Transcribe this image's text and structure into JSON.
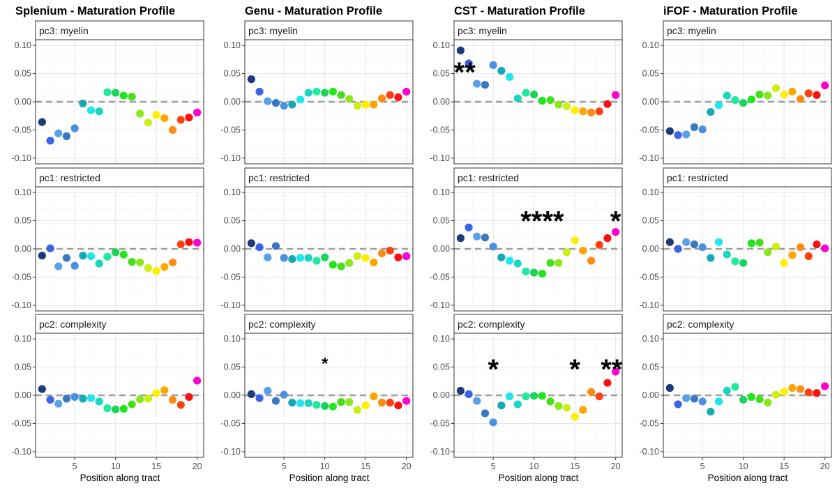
{
  "figure": {
    "columns": [
      {
        "title": "Splenium - Maturation Profile"
      },
      {
        "title": "Genu - Maturation Profile"
      },
      {
        "title": "CST - Maturation Profile"
      },
      {
        "title": "iFOF - Maturation Profile"
      }
    ],
    "rows": [
      {
        "strip": "pc3: myelin"
      },
      {
        "strip": "pc1: restricted"
      },
      {
        "strip": "pc2: complexity"
      }
    ],
    "x_axis_label": "Position along tract"
  },
  "chart_data": {
    "type": "scatter",
    "x": [
      1,
      2,
      3,
      4,
      5,
      6,
      7,
      8,
      9,
      10,
      11,
      12,
      13,
      14,
      15,
      16,
      17,
      18,
      19,
      20
    ],
    "xlim": [
      0.2,
      20.8
    ],
    "x_ticks": [
      5,
      10,
      15,
      20
    ],
    "ylim": [
      -0.11,
      0.11
    ],
    "y_ticks": [
      -0.1,
      -0.05,
      0.0,
      0.05,
      0.1
    ],
    "y_tick_labels": [
      "-0.10",
      "-0.05",
      "0.00",
      "0.05",
      "0.10"
    ],
    "reference_line": 0,
    "grid": true,
    "point_colors": [
      "#1f3a78",
      "#3a63e8",
      "#5aa0e8",
      "#3b78c4",
      "#4a90e2",
      "#17a8b5",
      "#1ee6ee",
      "#18d6c0",
      "#22e8a0",
      "#1bd45c",
      "#22e61c",
      "#44e01a",
      "#88e818",
      "#ccee12",
      "#ffee00",
      "#ffa500",
      "#ff8c10",
      "#ff4010",
      "#ff1010",
      "#ff00d0"
    ],
    "panels": [
      {
        "column": 0,
        "row": 0,
        "values": [
          -0.036,
          -0.069,
          -0.056,
          -0.061,
          -0.047,
          -0.003,
          -0.015,
          -0.017,
          0.017,
          0.016,
          0.011,
          0.009,
          -0.021,
          -0.037,
          -0.023,
          -0.029,
          -0.05,
          -0.032,
          -0.028,
          -0.019
        ],
        "significance": []
      },
      {
        "column": 1,
        "row": 0,
        "values": [
          0.04,
          0.018,
          0.001,
          -0.002,
          -0.007,
          -0.005,
          0.004,
          0.016,
          0.018,
          0.016,
          0.018,
          0.012,
          0.005,
          -0.007,
          -0.005,
          -0.005,
          0.006,
          0.012,
          0.008,
          0.018
        ],
        "significance": []
      },
      {
        "column": 2,
        "row": 0,
        "values": [
          0.091,
          0.068,
          0.032,
          0.03,
          0.065,
          0.055,
          0.044,
          0.006,
          0.016,
          0.013,
          0.002,
          0.003,
          -0.005,
          -0.008,
          -0.015,
          -0.017,
          -0.019,
          -0.017,
          -0.004,
          0.012
        ],
        "significance": [
          {
            "x": 1.5,
            "y": 0.058,
            "text": "**",
            "size": "large"
          }
        ]
      },
      {
        "column": 3,
        "row": 0,
        "values": [
          -0.052,
          -0.059,
          -0.058,
          -0.045,
          -0.049,
          -0.018,
          -0.006,
          0.011,
          0.003,
          -0.002,
          0.004,
          0.013,
          0.011,
          0.024,
          0.013,
          0.018,
          0.005,
          0.015,
          0.012,
          0.029
        ],
        "significance": []
      },
      {
        "column": 0,
        "row": 1,
        "values": [
          -0.012,
          0.001,
          -0.031,
          -0.016,
          -0.03,
          -0.012,
          -0.013,
          -0.026,
          -0.014,
          -0.006,
          -0.01,
          -0.023,
          -0.024,
          -0.034,
          -0.039,
          -0.032,
          -0.024,
          0.008,
          0.012,
          0.011
        ],
        "significance": []
      },
      {
        "column": 1,
        "row": 1,
        "values": [
          0.01,
          0.003,
          -0.015,
          0.005,
          -0.016,
          -0.018,
          -0.016,
          -0.016,
          -0.021,
          -0.015,
          -0.028,
          -0.031,
          -0.025,
          -0.013,
          -0.016,
          -0.024,
          -0.008,
          -0.003,
          -0.015,
          -0.013
        ],
        "significance": []
      },
      {
        "column": 2,
        "row": 1,
        "values": [
          0.019,
          0.038,
          0.022,
          0.02,
          0.004,
          -0.015,
          -0.021,
          -0.026,
          -0.04,
          -0.042,
          -0.044,
          -0.025,
          -0.025,
          -0.006,
          0.015,
          -0.003,
          -0.021,
          0.007,
          0.019,
          0.03
        ],
        "significance": [
          {
            "x": 11,
            "y": 0.055,
            "text": "****",
            "size": "large"
          },
          {
            "x": 20,
            "y": 0.055,
            "text": "*",
            "size": "large"
          }
        ]
      },
      {
        "column": 3,
        "row": 1,
        "values": [
          0.012,
          0.0,
          0.012,
          0.008,
          0.003,
          -0.016,
          0.012,
          -0.01,
          -0.022,
          -0.025,
          0.01,
          0.011,
          -0.006,
          0.004,
          -0.025,
          -0.011,
          0.003,
          -0.013,
          0.008,
          0.001
        ],
        "significance": []
      },
      {
        "column": 0,
        "row": 2,
        "values": [
          0.011,
          -0.008,
          -0.015,
          -0.006,
          -0.003,
          -0.006,
          -0.005,
          -0.011,
          -0.023,
          -0.025,
          -0.024,
          -0.016,
          -0.007,
          -0.006,
          0.004,
          0.009,
          -0.008,
          -0.017,
          -0.003,
          0.026
        ],
        "significance": []
      },
      {
        "column": 1,
        "row": 2,
        "values": [
          0.002,
          -0.005,
          0.008,
          -0.01,
          0.001,
          -0.013,
          -0.014,
          -0.014,
          -0.017,
          -0.019,
          -0.02,
          -0.012,
          -0.012,
          -0.026,
          -0.018,
          -0.002,
          -0.013,
          -0.013,
          -0.018,
          -0.01
        ],
        "significance": [
          {
            "x": 10,
            "y": 0.056,
            "text": "*",
            "size": "small"
          }
        ]
      },
      {
        "column": 2,
        "row": 2,
        "values": [
          0.008,
          0.002,
          -0.01,
          -0.032,
          -0.048,
          -0.018,
          -0.002,
          -0.016,
          -0.002,
          -0.001,
          -0.001,
          -0.011,
          -0.019,
          -0.022,
          -0.038,
          -0.026,
          0.006,
          -0.002,
          0.022,
          0.042
        ],
        "significance": [
          {
            "x": 5,
            "y": 0.052,
            "text": "*",
            "size": "large"
          },
          {
            "x": 15,
            "y": 0.052,
            "text": "*",
            "size": "large"
          },
          {
            "x": 19.5,
            "y": 0.052,
            "text": "**",
            "size": "large"
          }
        ]
      },
      {
        "column": 3,
        "row": 2,
        "values": [
          0.013,
          -0.016,
          -0.005,
          -0.006,
          -0.011,
          -0.029,
          -0.011,
          0.008,
          0.015,
          -0.008,
          -0.003,
          -0.007,
          -0.013,
          0.001,
          0.006,
          0.013,
          0.011,
          0.005,
          0.004,
          0.016
        ],
        "significance": []
      }
    ]
  }
}
